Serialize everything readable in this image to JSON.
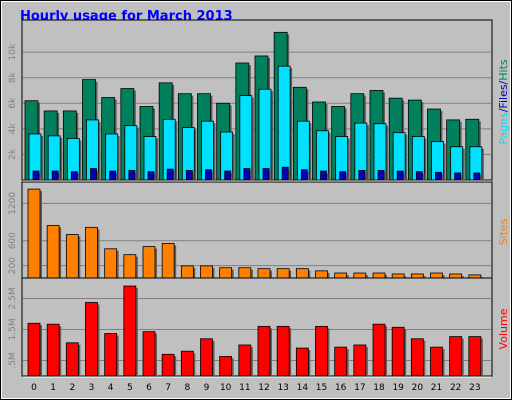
{
  "chart_data": [
    {
      "type": "bar",
      "title": "Hourly usage for March 2013",
      "legend_separator": "/",
      "series": [
        {
          "name": "Pages",
          "color": "#00e0ff",
          "values": [
            3600,
            3450,
            3250,
            4700,
            3600,
            4250,
            3400,
            4750,
            4100,
            4600,
            3750,
            6600,
            7100,
            8900,
            4600,
            3850,
            3400,
            4450,
            4400,
            3700,
            3400,
            3000,
            2600,
            2600
          ]
        },
        {
          "name": "Files",
          "color": "#0000c0",
          "values": [
            700,
            700,
            650,
            900,
            700,
            750,
            650,
            850,
            750,
            800,
            700,
            900,
            900,
            1000,
            800,
            700,
            650,
            750,
            750,
            700,
            650,
            600,
            550,
            550
          ]
        },
        {
          "name": "Hits",
          "color": "#00805c",
          "values": [
            6200,
            5400,
            5400,
            7850,
            6450,
            7150,
            5750,
            7600,
            6750,
            6750,
            6000,
            9150,
            9700,
            11550,
            7250,
            6100,
            5750,
            6750,
            7000,
            6400,
            6250,
            5550,
            4700,
            4750
          ]
        }
      ],
      "ylim": [
        0,
        12200
      ],
      "yticks": [
        {
          "value": 2000,
          "label": "2k"
        },
        {
          "value": 4000,
          "label": "4k"
        },
        {
          "value": 6000,
          "label": "6k"
        },
        {
          "value": 8000,
          "label": "8k"
        },
        {
          "value": 10000,
          "label": "10k"
        }
      ]
    },
    {
      "type": "bar",
      "series": [
        {
          "name": "Sites",
          "color": "#ff8000",
          "values": [
            1430,
            845,
            700,
            815,
            470,
            375,
            505,
            555,
            195,
            195,
            165,
            165,
            150,
            150,
            150,
            115,
            80,
            80,
            80,
            65,
            65,
            80,
            65,
            50
          ]
        }
      ],
      "ylim": [
        0,
        1480
      ],
      "yticks": [
        200,
        600,
        1200
      ]
    },
    {
      "type": "bar",
      "categories": [
        "0",
        "1",
        "2",
        "3",
        "4",
        "5",
        "6",
        "7",
        "8",
        "9",
        "10",
        "11",
        "12",
        "13",
        "14",
        "15",
        "16",
        "17",
        "18",
        "19",
        "20",
        "21",
        "22",
        "23"
      ],
      "series": [
        {
          "name": "Volume",
          "color": "#ff0000",
          "values": [
            1.7,
            1.67,
            1.07,
            2.37,
            1.37,
            2.9,
            1.43,
            0.7,
            0.8,
            1.2,
            0.63,
            1.0,
            1.6,
            1.6,
            0.9,
            1.6,
            0.93,
            1.0,
            1.67,
            1.57,
            1.2,
            0.93,
            1.27,
            1.27
          ]
        }
      ],
      "ylim": [
        0,
        3.03
      ],
      "yticks": [
        {
          "value": 0.5,
          "label": ".5M"
        },
        {
          "value": 1.5,
          "label": "1.5M"
        },
        {
          "value": 2.5,
          "label": "2.5M"
        }
      ]
    }
  ]
}
